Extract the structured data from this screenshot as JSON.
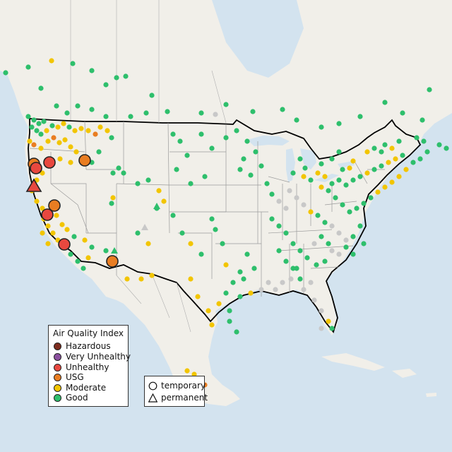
{
  "legend": {
    "title": "Air Quality Index",
    "categories": [
      {
        "label": "Hazardous",
        "color": "#7e2d1f"
      },
      {
        "label": "Very Unhealthy",
        "color": "#8a4f9e"
      },
      {
        "label": "Unhealthy",
        "color": "#e8483f"
      },
      {
        "label": "USG",
        "color": "#e97d22"
      },
      {
        "label": "Moderate",
        "color": "#f2c500"
      },
      {
        "label": "Good",
        "color": "#2ebf6c"
      }
    ],
    "shapes": [
      {
        "label": "temporary",
        "icon": "circle-icon"
      },
      {
        "label": "permanent",
        "icon": "triangle-icon"
      }
    ]
  },
  "colors": {
    "ocean": "#d3e3ef",
    "land": "#f1efe9",
    "border": "#000000",
    "state_lines": "#9a9a9a",
    "no_data": "#c8c8c8"
  }
}
